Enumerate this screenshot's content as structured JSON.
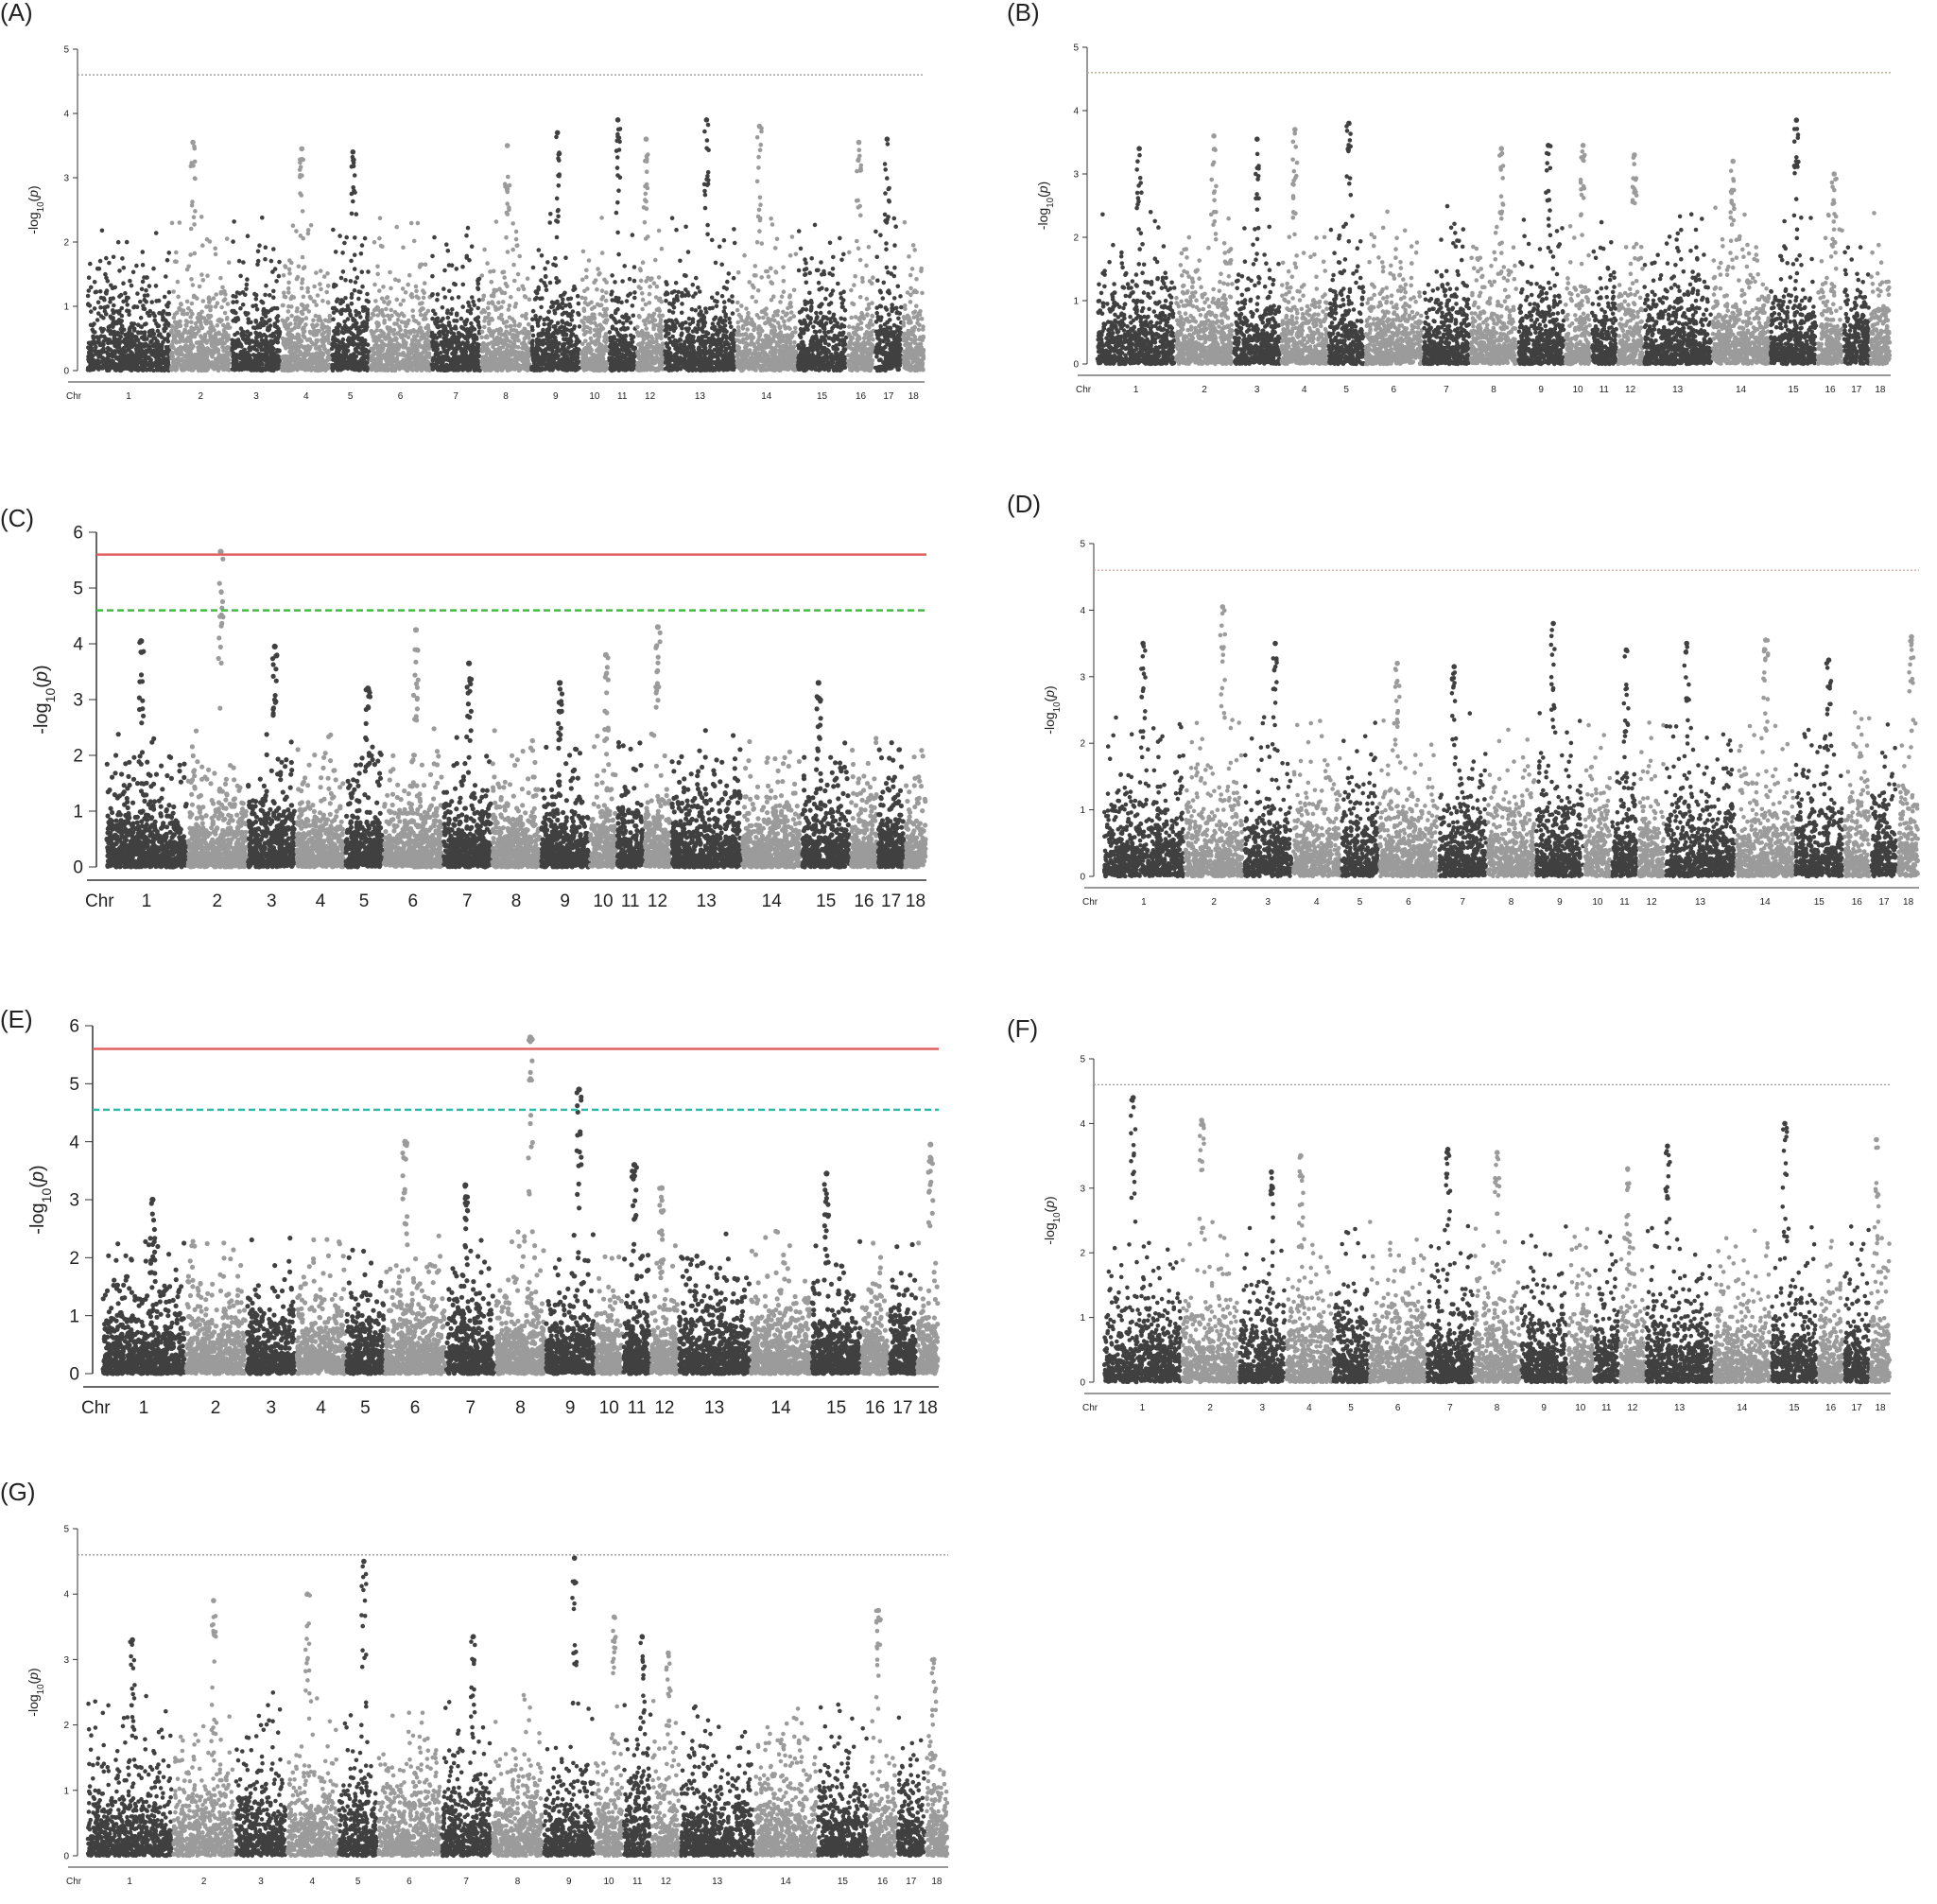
{
  "chart_data": [
    {
      "panel": "(A)",
      "type": "scatter",
      "plot": "manhattan",
      "xlabel": "Chr",
      "ylabel": "-log10(p)",
      "ylim": [
        0,
        5
      ],
      "yticks": [
        0,
        1,
        2,
        3,
        4,
        5
      ],
      "chromosomes": [
        "1",
        "2",
        "3",
        "4",
        "5",
        "6",
        "7",
        "8",
        "9",
        "10",
        "11",
        "12",
        "13",
        "14",
        "15",
        "16",
        "17",
        "18"
      ],
      "chr_widths": [
        15,
        11,
        9,
        9,
        7,
        11,
        9,
        9,
        9,
        5,
        5,
        5,
        13,
        11,
        9,
        5,
        5,
        4
      ],
      "thresholds": [
        {
          "value": 4.6,
          "style": "dotted",
          "color": "#9a9a9a"
        }
      ],
      "top_hits": [
        {
          "chr": "2",
          "value": 3.55
        },
        {
          "chr": "4",
          "value": 3.45
        },
        {
          "chr": "5",
          "value": 3.4
        },
        {
          "chr": "8",
          "value": 3.5
        },
        {
          "chr": "9",
          "value": 3.7
        },
        {
          "chr": "11",
          "value": 3.9
        },
        {
          "chr": "12",
          "value": 3.6
        },
        {
          "chr": "13",
          "value": 3.9
        },
        {
          "chr": "14",
          "value": 3.8
        },
        {
          "chr": "16",
          "value": 3.55
        },
        {
          "chr": "17",
          "value": 3.6
        }
      ],
      "colors": {
        "odd": "#404040",
        "even": "#9b9b9b"
      }
    },
    {
      "panel": "(B)",
      "type": "scatter",
      "plot": "manhattan",
      "xlabel": "Chr",
      "ylabel": "-log10(p)",
      "ylim": [
        0,
        5
      ],
      "yticks": [
        0,
        1,
        2,
        3,
        4,
        5
      ],
      "chromosomes": [
        "1",
        "2",
        "3",
        "4",
        "5",
        "6",
        "7",
        "8",
        "9",
        "10",
        "11",
        "12",
        "13",
        "14",
        "15",
        "16",
        "17",
        "18"
      ],
      "chr_widths": [
        15,
        11,
        9,
        9,
        7,
        11,
        9,
        9,
        9,
        5,
        5,
        5,
        13,
        11,
        9,
        5,
        5,
        4
      ],
      "thresholds": [
        {
          "value": 4.6,
          "style": "dotted",
          "color": "#b4a890"
        }
      ],
      "top_hits": [
        {
          "chr": "1",
          "value": 3.4
        },
        {
          "chr": "2",
          "value": 3.6
        },
        {
          "chr": "3",
          "value": 3.55
        },
        {
          "chr": "4",
          "value": 3.7
        },
        {
          "chr": "5",
          "value": 3.8
        },
        {
          "chr": "8",
          "value": 3.4
        },
        {
          "chr": "9",
          "value": 3.45
        },
        {
          "chr": "10",
          "value": 3.45
        },
        {
          "chr": "12",
          "value": 3.3
        },
        {
          "chr": "14",
          "value": 3.2
        },
        {
          "chr": "15",
          "value": 3.85
        },
        {
          "chr": "16",
          "value": 3.0
        }
      ],
      "colors": {
        "odd": "#404040",
        "even": "#9b9b9b"
      }
    },
    {
      "panel": "(C)",
      "type": "scatter",
      "plot": "manhattan",
      "xlabel": "Chr",
      "ylabel": "-log10(p)",
      "ylim": [
        0,
        6
      ],
      "yticks": [
        0,
        1,
        2,
        3,
        4,
        5,
        6
      ],
      "chromosomes": [
        "1",
        "2",
        "3",
        "4",
        "5",
        "6",
        "7",
        "8",
        "9",
        "10",
        "11",
        "12",
        "13",
        "14",
        "15",
        "16",
        "17",
        "18"
      ],
      "chr_widths": [
        15,
        11,
        9,
        9,
        7,
        11,
        9,
        9,
        9,
        5,
        5,
        5,
        13,
        11,
        9,
        5,
        5,
        4
      ],
      "thresholds": [
        {
          "value": 5.6,
          "style": "solid",
          "color": "#e06060"
        },
        {
          "value": 4.6,
          "style": "dashed",
          "color": "#44bb44"
        }
      ],
      "top_hits": [
        {
          "chr": "1",
          "value": 4.05
        },
        {
          "chr": "2",
          "value": 5.65
        },
        {
          "chr": "3",
          "value": 3.95
        },
        {
          "chr": "5",
          "value": 3.2
        },
        {
          "chr": "6",
          "value": 4.25
        },
        {
          "chr": "7",
          "value": 3.65
        },
        {
          "chr": "9",
          "value": 3.3
        },
        {
          "chr": "10",
          "value": 3.8
        },
        {
          "chr": "12",
          "value": 4.3
        },
        {
          "chr": "15",
          "value": 3.3
        }
      ],
      "colors": {
        "odd": "#404040",
        "even": "#9b9b9b"
      }
    },
    {
      "panel": "(D)",
      "type": "scatter",
      "plot": "manhattan",
      "xlabel": "Chr",
      "ylabel": "-log10(p)",
      "ylim": [
        0,
        5
      ],
      "yticks": [
        0,
        1,
        2,
        3,
        4,
        5
      ],
      "chromosomes": [
        "1",
        "2",
        "3",
        "4",
        "5",
        "6",
        "7",
        "8",
        "9",
        "10",
        "11",
        "12",
        "13",
        "14",
        "15",
        "16",
        "17",
        "18"
      ],
      "chr_widths": [
        15,
        11,
        9,
        9,
        7,
        11,
        9,
        9,
        9,
        5,
        5,
        5,
        13,
        11,
        9,
        5,
        5,
        4
      ],
      "thresholds": [
        {
          "value": 4.6,
          "style": "dotted",
          "color": "#d4a0a0"
        }
      ],
      "top_hits": [
        {
          "chr": "1",
          "value": 3.5
        },
        {
          "chr": "2",
          "value": 4.05
        },
        {
          "chr": "3",
          "value": 3.5
        },
        {
          "chr": "6",
          "value": 3.2
        },
        {
          "chr": "7",
          "value": 3.15
        },
        {
          "chr": "9",
          "value": 3.8
        },
        {
          "chr": "11",
          "value": 3.4
        },
        {
          "chr": "13",
          "value": 3.5
        },
        {
          "chr": "14",
          "value": 3.55
        },
        {
          "chr": "15",
          "value": 3.25
        },
        {
          "chr": "18",
          "value": 3.6
        }
      ],
      "colors": {
        "odd": "#404040",
        "even": "#9b9b9b"
      }
    },
    {
      "panel": "(E)",
      "type": "scatter",
      "plot": "manhattan",
      "xlabel": "Chr",
      "ylabel": "-log10(p)",
      "ylim": [
        0,
        6
      ],
      "yticks": [
        0,
        1,
        2,
        3,
        4,
        5,
        6
      ],
      "chromosomes": [
        "1",
        "2",
        "3",
        "4",
        "5",
        "6",
        "7",
        "8",
        "9",
        "10",
        "11",
        "12",
        "13",
        "14",
        "15",
        "16",
        "17",
        "18"
      ],
      "chr_widths": [
        15,
        11,
        9,
        9,
        7,
        11,
        9,
        9,
        9,
        5,
        5,
        5,
        13,
        11,
        9,
        5,
        5,
        4
      ],
      "thresholds": [
        {
          "value": 5.6,
          "style": "solid",
          "color": "#e06060"
        },
        {
          "value": 4.55,
          "style": "dashed",
          "color": "#33bbaa"
        }
      ],
      "top_hits": [
        {
          "chr": "1",
          "value": 3.0
        },
        {
          "chr": "6",
          "value": 4.0
        },
        {
          "chr": "7",
          "value": 3.25
        },
        {
          "chr": "8",
          "value": 5.8
        },
        {
          "chr": "9",
          "value": 4.9
        },
        {
          "chr": "11",
          "value": 3.6
        },
        {
          "chr": "12",
          "value": 3.2
        },
        {
          "chr": "15",
          "value": 3.45
        },
        {
          "chr": "18",
          "value": 3.95
        }
      ],
      "colors": {
        "odd": "#404040",
        "even": "#9b9b9b"
      }
    },
    {
      "panel": "(F)",
      "type": "scatter",
      "plot": "manhattan",
      "xlabel": "Chr",
      "ylabel": "-log10(p)",
      "ylim": [
        0,
        5
      ],
      "yticks": [
        0,
        1,
        2,
        3,
        4,
        5
      ],
      "chromosomes": [
        "1",
        "2",
        "3",
        "4",
        "5",
        "6",
        "7",
        "8",
        "9",
        "10",
        "11",
        "12",
        "13",
        "14",
        "15",
        "16",
        "17",
        "18"
      ],
      "chr_widths": [
        15,
        11,
        9,
        9,
        7,
        11,
        9,
        9,
        9,
        5,
        5,
        5,
        13,
        11,
        9,
        5,
        5,
        4
      ],
      "thresholds": [
        {
          "value": 4.6,
          "style": "dotted",
          "color": "#9a9a9a"
        }
      ],
      "top_hits": [
        {
          "chr": "1",
          "value": 4.4
        },
        {
          "chr": "2",
          "value": 4.05
        },
        {
          "chr": "3",
          "value": 3.25
        },
        {
          "chr": "4",
          "value": 3.5
        },
        {
          "chr": "7",
          "value": 3.6
        },
        {
          "chr": "8",
          "value": 3.55
        },
        {
          "chr": "12",
          "value": 3.3
        },
        {
          "chr": "13",
          "value": 3.65
        },
        {
          "chr": "15",
          "value": 4.0
        },
        {
          "chr": "18",
          "value": 3.75
        }
      ],
      "colors": {
        "odd": "#404040",
        "even": "#9b9b9b"
      }
    },
    {
      "panel": "(G)",
      "type": "scatter",
      "plot": "manhattan",
      "xlabel": "Chr",
      "ylabel": "-log10(p)",
      "ylim": [
        0,
        5
      ],
      "yticks": [
        0,
        1,
        2,
        3,
        4,
        5
      ],
      "chromosomes": [
        "1",
        "2",
        "3",
        "4",
        "5",
        "6",
        "7",
        "8",
        "9",
        "10",
        "11",
        "12",
        "13",
        "14",
        "15",
        "16",
        "17",
        "18"
      ],
      "chr_widths": [
        15,
        11,
        9,
        9,
        7,
        11,
        9,
        9,
        9,
        5,
        5,
        5,
        13,
        11,
        9,
        5,
        5,
        4
      ],
      "thresholds": [
        {
          "value": 4.6,
          "style": "dotted",
          "color": "#9a9a9a"
        }
      ],
      "top_hits": [
        {
          "chr": "1",
          "value": 3.3
        },
        {
          "chr": "2",
          "value": 3.9
        },
        {
          "chr": "4",
          "value": 4.0
        },
        {
          "chr": "5",
          "value": 4.5
        },
        {
          "chr": "7",
          "value": 3.35
        },
        {
          "chr": "9",
          "value": 4.55
        },
        {
          "chr": "10",
          "value": 3.65
        },
        {
          "chr": "11",
          "value": 3.35
        },
        {
          "chr": "12",
          "value": 3.1
        },
        {
          "chr": "16",
          "value": 3.75
        },
        {
          "chr": "18",
          "value": 3.0
        }
      ],
      "colors": {
        "odd": "#404040",
        "even": "#9b9b9b"
      }
    }
  ]
}
